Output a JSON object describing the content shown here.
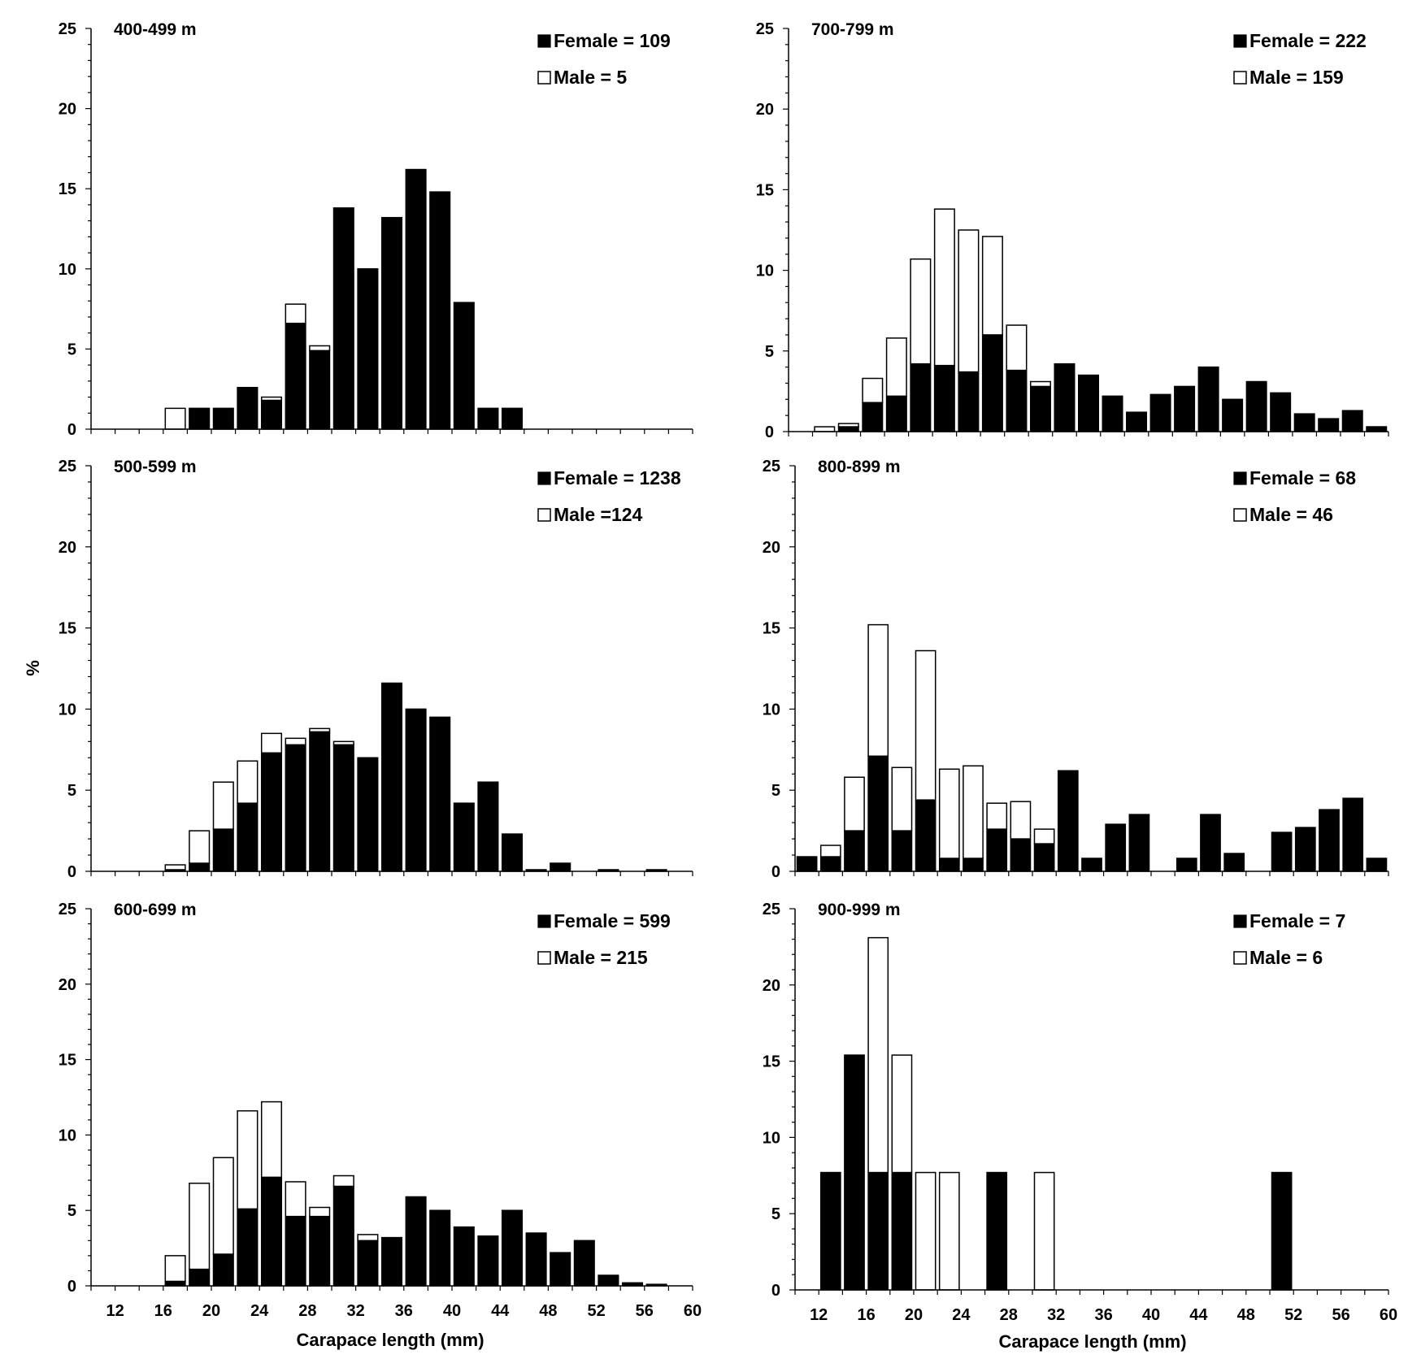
{
  "figure": {
    "ylabel": "%",
    "xlabel": "Carapace length (mm)"
  },
  "chart_data": [
    {
      "type": "bar",
      "stacked": true,
      "title": "400-499 m",
      "legend": {
        "female": "Female = 109",
        "male": "Male = 5",
        "placement": "top-right"
      },
      "ylim": [
        0,
        25
      ],
      "yticks": [
        0,
        5,
        10,
        15,
        20,
        25
      ],
      "xlim": [
        10,
        60
      ],
      "x": [
        18,
        20,
        22,
        24,
        26,
        28,
        30,
        32,
        34,
        36,
        38,
        40,
        42,
        44,
        46
      ],
      "series": [
        {
          "name": "Female",
          "values": [
            0,
            1.3,
            1.3,
            2.6,
            1.8,
            6.6,
            4.9,
            13.8,
            10.0,
            13.2,
            16.2,
            14.8,
            7.9,
            1.3,
            1.3
          ]
        },
        {
          "name": "Male",
          "values": [
            1.3,
            0,
            0,
            0,
            0.2,
            1.2,
            0.3,
            0,
            0,
            0,
            0,
            0,
            0,
            0,
            0
          ]
        }
      ]
    },
    {
      "type": "bar",
      "stacked": true,
      "title": "700-799 m",
      "legend": {
        "female": "Female = 222",
        "male": "Male = 159",
        "placement": "top-right"
      },
      "ylim": [
        0,
        25
      ],
      "yticks": [
        0,
        5,
        10,
        15,
        20,
        25
      ],
      "xlim": [
        10,
        60
      ],
      "x": [
        14,
        16,
        18,
        20,
        22,
        24,
        26,
        28,
        30,
        32,
        34,
        36,
        38,
        40,
        42,
        44,
        46,
        48,
        50,
        52,
        54,
        56,
        58,
        60
      ],
      "series": [
        {
          "name": "Female",
          "values": [
            0,
            0.3,
            1.8,
            2.2,
            4.2,
            4.1,
            3.7,
            6.0,
            3.8,
            2.8,
            4.2,
            3.5,
            2.2,
            1.2,
            2.3,
            2.8,
            4.0,
            2.0,
            3.1,
            2.4,
            1.1,
            0.8,
            1.3,
            0.3
          ]
        },
        {
          "name": "Male",
          "values": [
            0.3,
            0.2,
            1.5,
            3.6,
            6.5,
            9.7,
            8.8,
            6.1,
            2.8,
            0.3,
            0,
            0,
            0,
            0,
            0,
            0,
            0,
            0,
            0,
            0,
            0,
            0,
            0,
            0
          ]
        }
      ]
    },
    {
      "type": "bar",
      "stacked": true,
      "title": "500-599 m",
      "legend": {
        "female": "Female = 1238",
        "male": "Male =124",
        "placement": "top-right"
      },
      "ylim": [
        0,
        25
      ],
      "yticks": [
        0,
        5,
        10,
        15,
        20,
        25
      ],
      "xlim": [
        10,
        60
      ],
      "x": [
        18,
        20,
        22,
        24,
        26,
        28,
        30,
        32,
        34,
        36,
        38,
        40,
        42,
        44,
        46,
        48,
        50,
        54,
        58
      ],
      "series": [
        {
          "name": "Female",
          "values": [
            0.1,
            0.5,
            2.6,
            4.2,
            7.3,
            7.8,
            8.6,
            7.8,
            7.0,
            11.6,
            10.0,
            9.5,
            4.2,
            5.5,
            2.3,
            0.1,
            0.5,
            0.1,
            0.1
          ]
        },
        {
          "name": "Male",
          "values": [
            0.3,
            2.0,
            2.9,
            2.6,
            1.2,
            0.4,
            0.2,
            0.2,
            0,
            0,
            0,
            0,
            0,
            0,
            0,
            0,
            0,
            0,
            0
          ]
        }
      ]
    },
    {
      "type": "bar",
      "stacked": true,
      "title": "800-899 m",
      "legend": {
        "female": "Female = 68",
        "male": "Male = 46",
        "placement": "top-right"
      },
      "ylim": [
        0,
        25
      ],
      "yticks": [
        0,
        5,
        10,
        15,
        20,
        25
      ],
      "xlim": [
        10,
        60
      ],
      "x": [
        12,
        14,
        16,
        18,
        20,
        22,
        24,
        26,
        28,
        30,
        32,
        34,
        36,
        38,
        40,
        44,
        46,
        48,
        52,
        54,
        56,
        58,
        60
      ],
      "series": [
        {
          "name": "Female",
          "values": [
            0.9,
            0.9,
            2.5,
            7.1,
            2.5,
            4.4,
            0.8,
            0.8,
            2.6,
            2.0,
            1.7,
            6.2,
            0.8,
            2.9,
            3.5,
            0.8,
            3.5,
            1.1,
            2.4,
            2.7,
            3.8,
            4.5,
            0.8
          ]
        },
        {
          "name": "Male",
          "values": [
            0,
            0.7,
            3.3,
            8.1,
            3.9,
            9.2,
            5.5,
            5.7,
            1.6,
            2.3,
            0.9,
            0,
            0,
            0,
            0,
            0,
            0,
            0,
            0,
            0,
            0,
            0,
            0
          ]
        }
      ]
    },
    {
      "type": "bar",
      "stacked": true,
      "title": "600-699 m",
      "legend": {
        "female": "Female = 599",
        "male": "Male = 215",
        "placement": "top-right"
      },
      "ylim": [
        0,
        25
      ],
      "yticks": [
        0,
        5,
        10,
        15,
        20,
        25
      ],
      "xlim": [
        10,
        60
      ],
      "xticks": [
        12,
        16,
        20,
        24,
        28,
        32,
        36,
        40,
        44,
        48,
        52,
        56,
        60
      ],
      "x": [
        18,
        20,
        22,
        24,
        26,
        28,
        30,
        32,
        34,
        36,
        38,
        40,
        42,
        44,
        46,
        48,
        50,
        52,
        54,
        56,
        58
      ],
      "series": [
        {
          "name": "Female",
          "values": [
            0.3,
            1.1,
            2.1,
            5.1,
            7.2,
            4.6,
            4.6,
            6.6,
            3.0,
            3.2,
            5.9,
            5.0,
            3.9,
            3.3,
            5.0,
            3.5,
            2.2,
            3.0,
            0.7,
            0.2,
            0.1
          ]
        },
        {
          "name": "Male",
          "values": [
            1.7,
            5.7,
            6.4,
            6.5,
            5.0,
            2.3,
            0.6,
            0.7,
            0.4,
            0,
            0,
            0,
            0,
            0,
            0,
            0,
            0,
            0,
            0,
            0,
            0
          ]
        }
      ]
    },
    {
      "type": "bar",
      "stacked": true,
      "title": "900-999 m",
      "legend": {
        "female": "Female = 7",
        "male": "Male = 6",
        "placement": "top-right"
      },
      "ylim": [
        0,
        25
      ],
      "yticks": [
        0,
        5,
        10,
        15,
        20,
        25
      ],
      "xlim": [
        10,
        60
      ],
      "xticks": [
        12,
        16,
        20,
        24,
        28,
        32,
        36,
        40,
        44,
        48,
        52,
        56,
        60
      ],
      "x": [
        14,
        16,
        18,
        20,
        22,
        24,
        28,
        32,
        52
      ],
      "series": [
        {
          "name": "Female",
          "values": [
            7.7,
            15.4,
            7.7,
            7.7,
            0,
            0,
            7.7,
            0,
            7.7
          ]
        },
        {
          "name": "Male",
          "values": [
            0,
            0,
            15.4,
            7.7,
            7.7,
            7.7,
            0,
            7.7,
            0
          ]
        }
      ]
    }
  ]
}
